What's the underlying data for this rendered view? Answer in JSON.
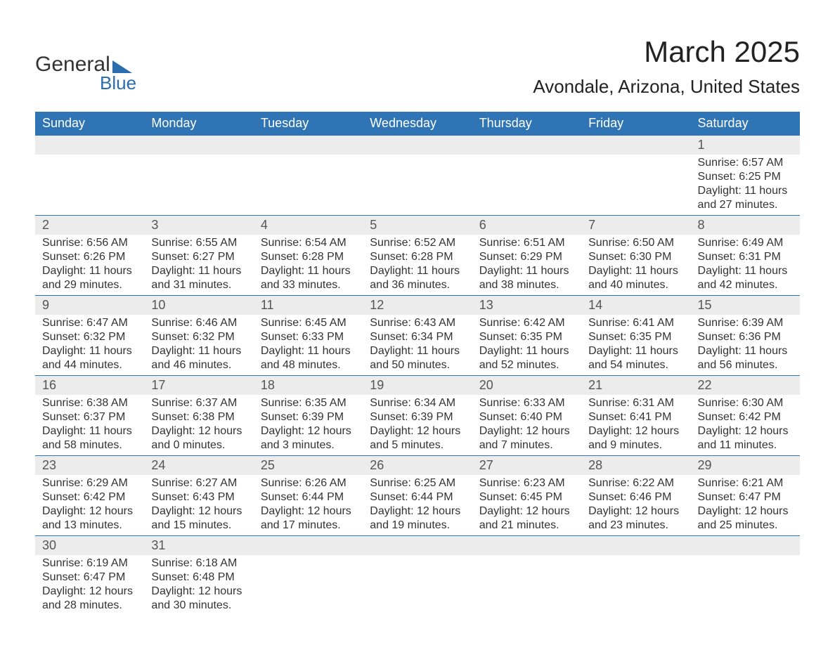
{
  "brand": {
    "top": "General",
    "bottom": "Blue"
  },
  "title": "March 2025",
  "location": "Avondale, Arizona, United States",
  "weekdays": [
    "Sunday",
    "Monday",
    "Tuesday",
    "Wednesday",
    "Thursday",
    "Friday",
    "Saturday"
  ],
  "colors": {
    "header_bg": "#2f74b5",
    "header_text": "#ffffff",
    "daynum_bg": "#ececec",
    "border": "#2f74b5",
    "body_text": "#333333",
    "brand_accent": "#2a6daf"
  },
  "weeks": [
    {
      "nums": [
        "",
        "",
        "",
        "",
        "",
        "",
        "1"
      ],
      "sunrise": [
        "",
        "",
        "",
        "",
        "",
        "",
        "Sunrise: 6:57 AM"
      ],
      "sunset": [
        "",
        "",
        "",
        "",
        "",
        "",
        "Sunset: 6:25 PM"
      ],
      "day1": [
        "",
        "",
        "",
        "",
        "",
        "",
        "Daylight: 11 hours"
      ],
      "day2": [
        "",
        "",
        "",
        "",
        "",
        "",
        "and 27 minutes."
      ]
    },
    {
      "nums": [
        "2",
        "3",
        "4",
        "5",
        "6",
        "7",
        "8"
      ],
      "sunrise": [
        "Sunrise: 6:56 AM",
        "Sunrise: 6:55 AM",
        "Sunrise: 6:54 AM",
        "Sunrise: 6:52 AM",
        "Sunrise: 6:51 AM",
        "Sunrise: 6:50 AM",
        "Sunrise: 6:49 AM"
      ],
      "sunset": [
        "Sunset: 6:26 PM",
        "Sunset: 6:27 PM",
        "Sunset: 6:28 PM",
        "Sunset: 6:28 PM",
        "Sunset: 6:29 PM",
        "Sunset: 6:30 PM",
        "Sunset: 6:31 PM"
      ],
      "day1": [
        "Daylight: 11 hours",
        "Daylight: 11 hours",
        "Daylight: 11 hours",
        "Daylight: 11 hours",
        "Daylight: 11 hours",
        "Daylight: 11 hours",
        "Daylight: 11 hours"
      ],
      "day2": [
        "and 29 minutes.",
        "and 31 minutes.",
        "and 33 minutes.",
        "and 36 minutes.",
        "and 38 minutes.",
        "and 40 minutes.",
        "and 42 minutes."
      ]
    },
    {
      "nums": [
        "9",
        "10",
        "11",
        "12",
        "13",
        "14",
        "15"
      ],
      "sunrise": [
        "Sunrise: 6:47 AM",
        "Sunrise: 6:46 AM",
        "Sunrise: 6:45 AM",
        "Sunrise: 6:43 AM",
        "Sunrise: 6:42 AM",
        "Sunrise: 6:41 AM",
        "Sunrise: 6:39 AM"
      ],
      "sunset": [
        "Sunset: 6:32 PM",
        "Sunset: 6:32 PM",
        "Sunset: 6:33 PM",
        "Sunset: 6:34 PM",
        "Sunset: 6:35 PM",
        "Sunset: 6:35 PM",
        "Sunset: 6:36 PM"
      ],
      "day1": [
        "Daylight: 11 hours",
        "Daylight: 11 hours",
        "Daylight: 11 hours",
        "Daylight: 11 hours",
        "Daylight: 11 hours",
        "Daylight: 11 hours",
        "Daylight: 11 hours"
      ],
      "day2": [
        "and 44 minutes.",
        "and 46 minutes.",
        "and 48 minutes.",
        "and 50 minutes.",
        "and 52 minutes.",
        "and 54 minutes.",
        "and 56 minutes."
      ]
    },
    {
      "nums": [
        "16",
        "17",
        "18",
        "19",
        "20",
        "21",
        "22"
      ],
      "sunrise": [
        "Sunrise: 6:38 AM",
        "Sunrise: 6:37 AM",
        "Sunrise: 6:35 AM",
        "Sunrise: 6:34 AM",
        "Sunrise: 6:33 AM",
        "Sunrise: 6:31 AM",
        "Sunrise: 6:30 AM"
      ],
      "sunset": [
        "Sunset: 6:37 PM",
        "Sunset: 6:38 PM",
        "Sunset: 6:39 PM",
        "Sunset: 6:39 PM",
        "Sunset: 6:40 PM",
        "Sunset: 6:41 PM",
        "Sunset: 6:42 PM"
      ],
      "day1": [
        "Daylight: 11 hours",
        "Daylight: 12 hours",
        "Daylight: 12 hours",
        "Daylight: 12 hours",
        "Daylight: 12 hours",
        "Daylight: 12 hours",
        "Daylight: 12 hours"
      ],
      "day2": [
        "and 58 minutes.",
        "and 0 minutes.",
        "and 3 minutes.",
        "and 5 minutes.",
        "and 7 minutes.",
        "and 9 minutes.",
        "and 11 minutes."
      ]
    },
    {
      "nums": [
        "23",
        "24",
        "25",
        "26",
        "27",
        "28",
        "29"
      ],
      "sunrise": [
        "Sunrise: 6:29 AM",
        "Sunrise: 6:27 AM",
        "Sunrise: 6:26 AM",
        "Sunrise: 6:25 AM",
        "Sunrise: 6:23 AM",
        "Sunrise: 6:22 AM",
        "Sunrise: 6:21 AM"
      ],
      "sunset": [
        "Sunset: 6:42 PM",
        "Sunset: 6:43 PM",
        "Sunset: 6:44 PM",
        "Sunset: 6:44 PM",
        "Sunset: 6:45 PM",
        "Sunset: 6:46 PM",
        "Sunset: 6:47 PM"
      ],
      "day1": [
        "Daylight: 12 hours",
        "Daylight: 12 hours",
        "Daylight: 12 hours",
        "Daylight: 12 hours",
        "Daylight: 12 hours",
        "Daylight: 12 hours",
        "Daylight: 12 hours"
      ],
      "day2": [
        "and 13 minutes.",
        "and 15 minutes.",
        "and 17 minutes.",
        "and 19 minutes.",
        "and 21 minutes.",
        "and 23 minutes.",
        "and 25 minutes."
      ]
    },
    {
      "nums": [
        "30",
        "31",
        "",
        "",
        "",
        "",
        ""
      ],
      "sunrise": [
        "Sunrise: 6:19 AM",
        "Sunrise: 6:18 AM",
        "",
        "",
        "",
        "",
        ""
      ],
      "sunset": [
        "Sunset: 6:47 PM",
        "Sunset: 6:48 PM",
        "",
        "",
        "",
        "",
        ""
      ],
      "day1": [
        "Daylight: 12 hours",
        "Daylight: 12 hours",
        "",
        "",
        "",
        "",
        ""
      ],
      "day2": [
        "and 28 minutes.",
        "and 30 minutes.",
        "",
        "",
        "",
        "",
        ""
      ]
    }
  ]
}
